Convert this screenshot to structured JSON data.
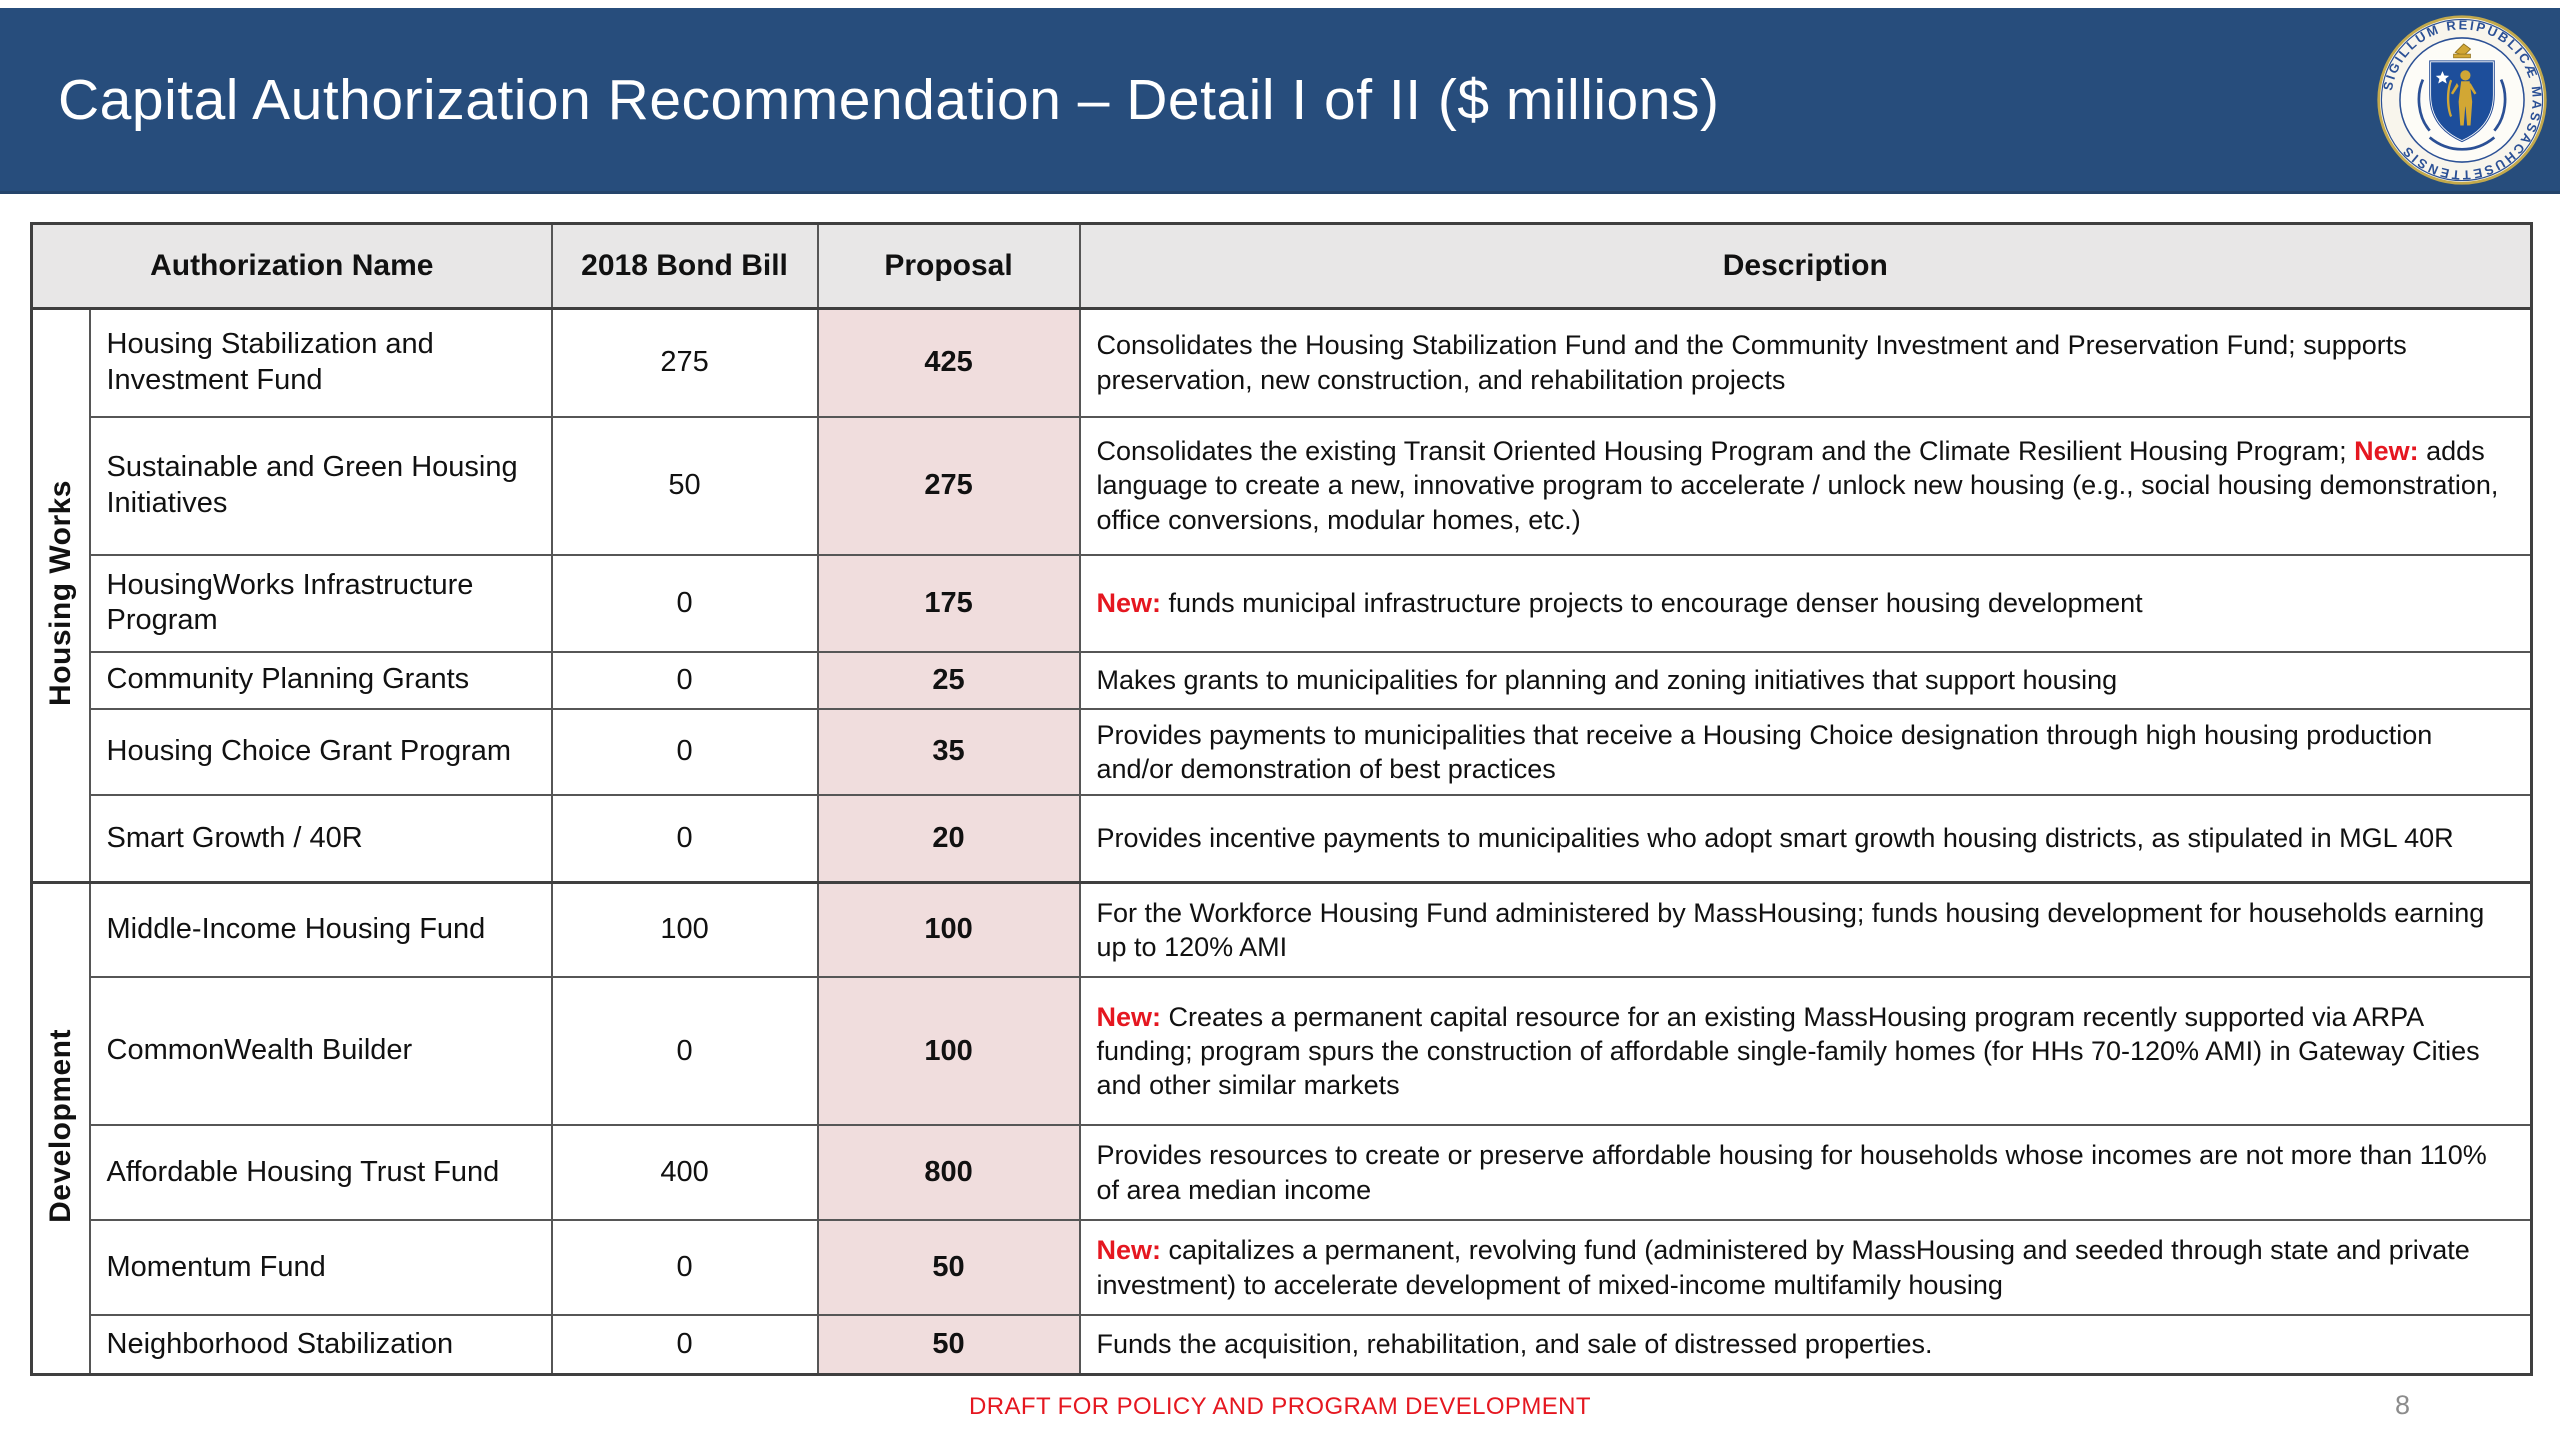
{
  "slide": {
    "title": "Capital Authorization Recommendation – Detail I of II ($ millions)",
    "footer_note": "DRAFT FOR POLICY AND PROGRAM DEVELOPMENT",
    "page_number": "8",
    "seal": {
      "ring_text": "SIGILLUM REIPUBLICÆ MASSACHUSETTENSIS"
    }
  },
  "colors": {
    "title_bar_blue": "#274d7c",
    "table_header_gray": "#e8e7e7",
    "proposal_pink": "#f0dddd",
    "new_red": "#e51720",
    "footer_red": "#e51720",
    "page_number_gray": "#8c8c8c",
    "seal_blue": "#2b5095",
    "seal_gold": "#d2a734"
  },
  "table": {
    "columns": [
      "Authorization Name",
      "2018 Bond Bill",
      "Proposal",
      "Description"
    ],
    "groups": [
      {
        "label": "Housing Works",
        "rows": [
          {
            "name": "Housing Stabilization and Investment Fund",
            "bond_2018": "275",
            "proposal": "425",
            "description": [
              {
                "style": "normal",
                "text": "Consolidates the Housing Stabilization Fund and the Community Investment and Preservation Fund; supports preservation, new construction, and rehabilitation projects"
              }
            ]
          },
          {
            "name": "Sustainable and Green Housing Initiatives",
            "bond_2018": "50",
            "proposal": "275",
            "description": [
              {
                "style": "normal",
                "text": "Consolidates the existing Transit Oriented Housing Program and the Climate Resilient Housing Program; "
              },
              {
                "style": "new",
                "text": "New:"
              },
              {
                "style": "normal",
                "text": " adds language to create a new, innovative program to accelerate / unlock new housing (e.g., social housing demonstration, office conversions, modular homes, etc.)"
              }
            ]
          },
          {
            "name": "HousingWorks Infrastructure Program",
            "bond_2018": "0",
            "proposal": "175",
            "description": [
              {
                "style": "new",
                "text": "New:"
              },
              {
                "style": "normal",
                "text": " funds municipal infrastructure projects to encourage denser housing development"
              }
            ]
          },
          {
            "name": "Community Planning Grants",
            "bond_2018": "0",
            "proposal": "25",
            "description": [
              {
                "style": "normal",
                "text": "Makes grants to municipalities for planning and zoning initiatives that support housing"
              }
            ]
          },
          {
            "name": "Housing Choice Grant Program",
            "bond_2018": "0",
            "proposal": "35",
            "description": [
              {
                "style": "normal",
                "text": "Provides payments to municipalities that receive a Housing Choice designation through high housing production and/or demonstration of best practices"
              }
            ]
          },
          {
            "name": "Smart Growth / 40R",
            "bond_2018": "0",
            "proposal": "20",
            "description": [
              {
                "style": "normal",
                "text": "Provides incentive payments to municipalities who adopt smart growth housing districts, as stipulated in MGL 40R"
              }
            ]
          }
        ]
      },
      {
        "label": "Development",
        "rows": [
          {
            "name": "Middle-Income Housing Fund",
            "bond_2018": "100",
            "proposal": "100",
            "description": [
              {
                "style": "normal",
                "text": "For the Workforce Housing Fund administered by MassHousing; funds housing development for households earning up to 120% AMI"
              }
            ]
          },
          {
            "name": "CommonWealth Builder",
            "bond_2018": "0",
            "proposal": "100",
            "description": [
              {
                "style": "new",
                "text": "New:"
              },
              {
                "style": "normal",
                "text": " Creates a permanent capital resource for an existing MassHousing program recently supported via ARPA funding; program spurs the construction of affordable single-family homes (for HHs 70-120% AMI) in Gateway Cities and other similar markets"
              }
            ]
          },
          {
            "name": "Affordable Housing Trust Fund",
            "bond_2018": "400",
            "proposal": "800",
            "description": [
              {
                "style": "normal",
                "text": "Provides resources to create or preserve affordable housing for households whose incomes are not more than 110% of area median income"
              }
            ]
          },
          {
            "name": "Momentum Fund",
            "bond_2018": "0",
            "proposal": "50",
            "description": [
              {
                "style": "new",
                "text": "New:"
              },
              {
                "style": "normal",
                "text": " capitalizes a permanent, revolving fund (administered by MassHousing and seeded through state and private investment) to accelerate development of mixed-income multifamily housing"
              }
            ]
          },
          {
            "name": "Neighborhood Stabilization",
            "bond_2018": "0",
            "proposal": "50",
            "description": [
              {
                "style": "normal",
                "text": "Funds the acquisition, rehabilitation, and sale of distressed properties."
              }
            ]
          }
        ]
      }
    ]
  }
}
